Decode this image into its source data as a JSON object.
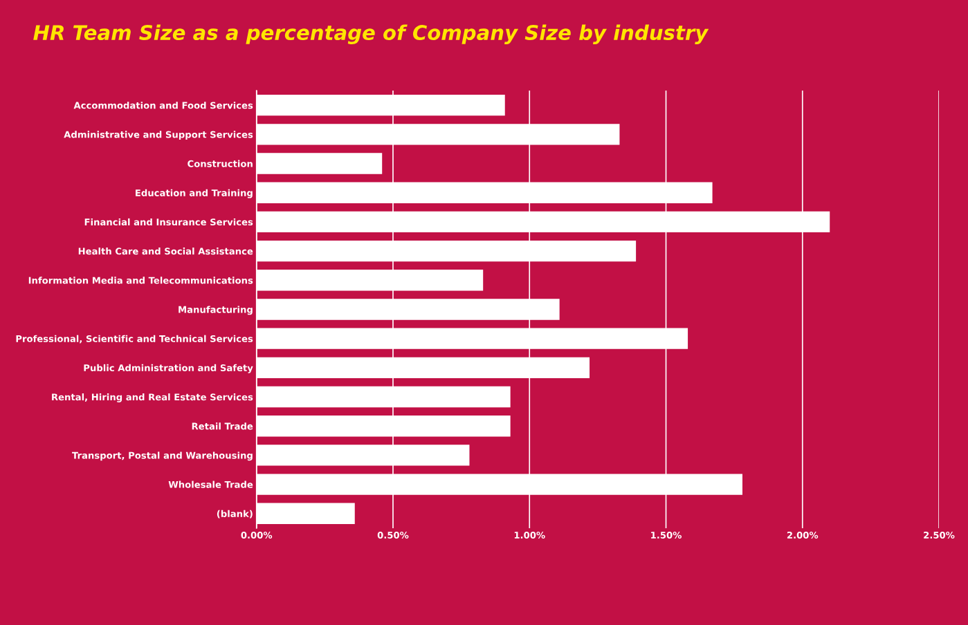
{
  "chart_data": {
    "type": "bar",
    "orientation": "horizontal",
    "title": "HR Team Size as a percentage of Company Size by industry",
    "categories": [
      "Accommodation and Food Services",
      "Administrative and Support Services",
      "Construction",
      "Education and Training",
      "Financial and Insurance Services",
      "Health Care and Social Assistance",
      "Information Media and Telecommunications",
      "Manufacturing",
      "Professional, Scientific and Technical Services",
      "Public Administration and Safety",
      "Rental, Hiring and Real Estate Services",
      "Retail Trade",
      "Transport, Postal and Warehousing",
      "Wholesale Trade",
      "(blank)"
    ],
    "values": [
      0.91,
      1.33,
      0.46,
      1.67,
      2.1,
      1.39,
      0.83,
      1.11,
      1.58,
      1.22,
      0.93,
      0.93,
      0.78,
      1.78,
      0.36
    ],
    "color": "#ffffff",
    "xlim": [
      0,
      2.5
    ],
    "xticks": [
      {
        "value": 0,
        "label": "0.00%"
      },
      {
        "value": 0.5,
        "label": "0.50%"
      },
      {
        "value": 1.0,
        "label": "1.00%"
      },
      {
        "value": 1.5,
        "label": "1.50%"
      },
      {
        "value": 2.0,
        "label": "2.00%"
      },
      {
        "value": 2.5,
        "label": "2.50%"
      }
    ],
    "grid": "x",
    "legend": false
  }
}
